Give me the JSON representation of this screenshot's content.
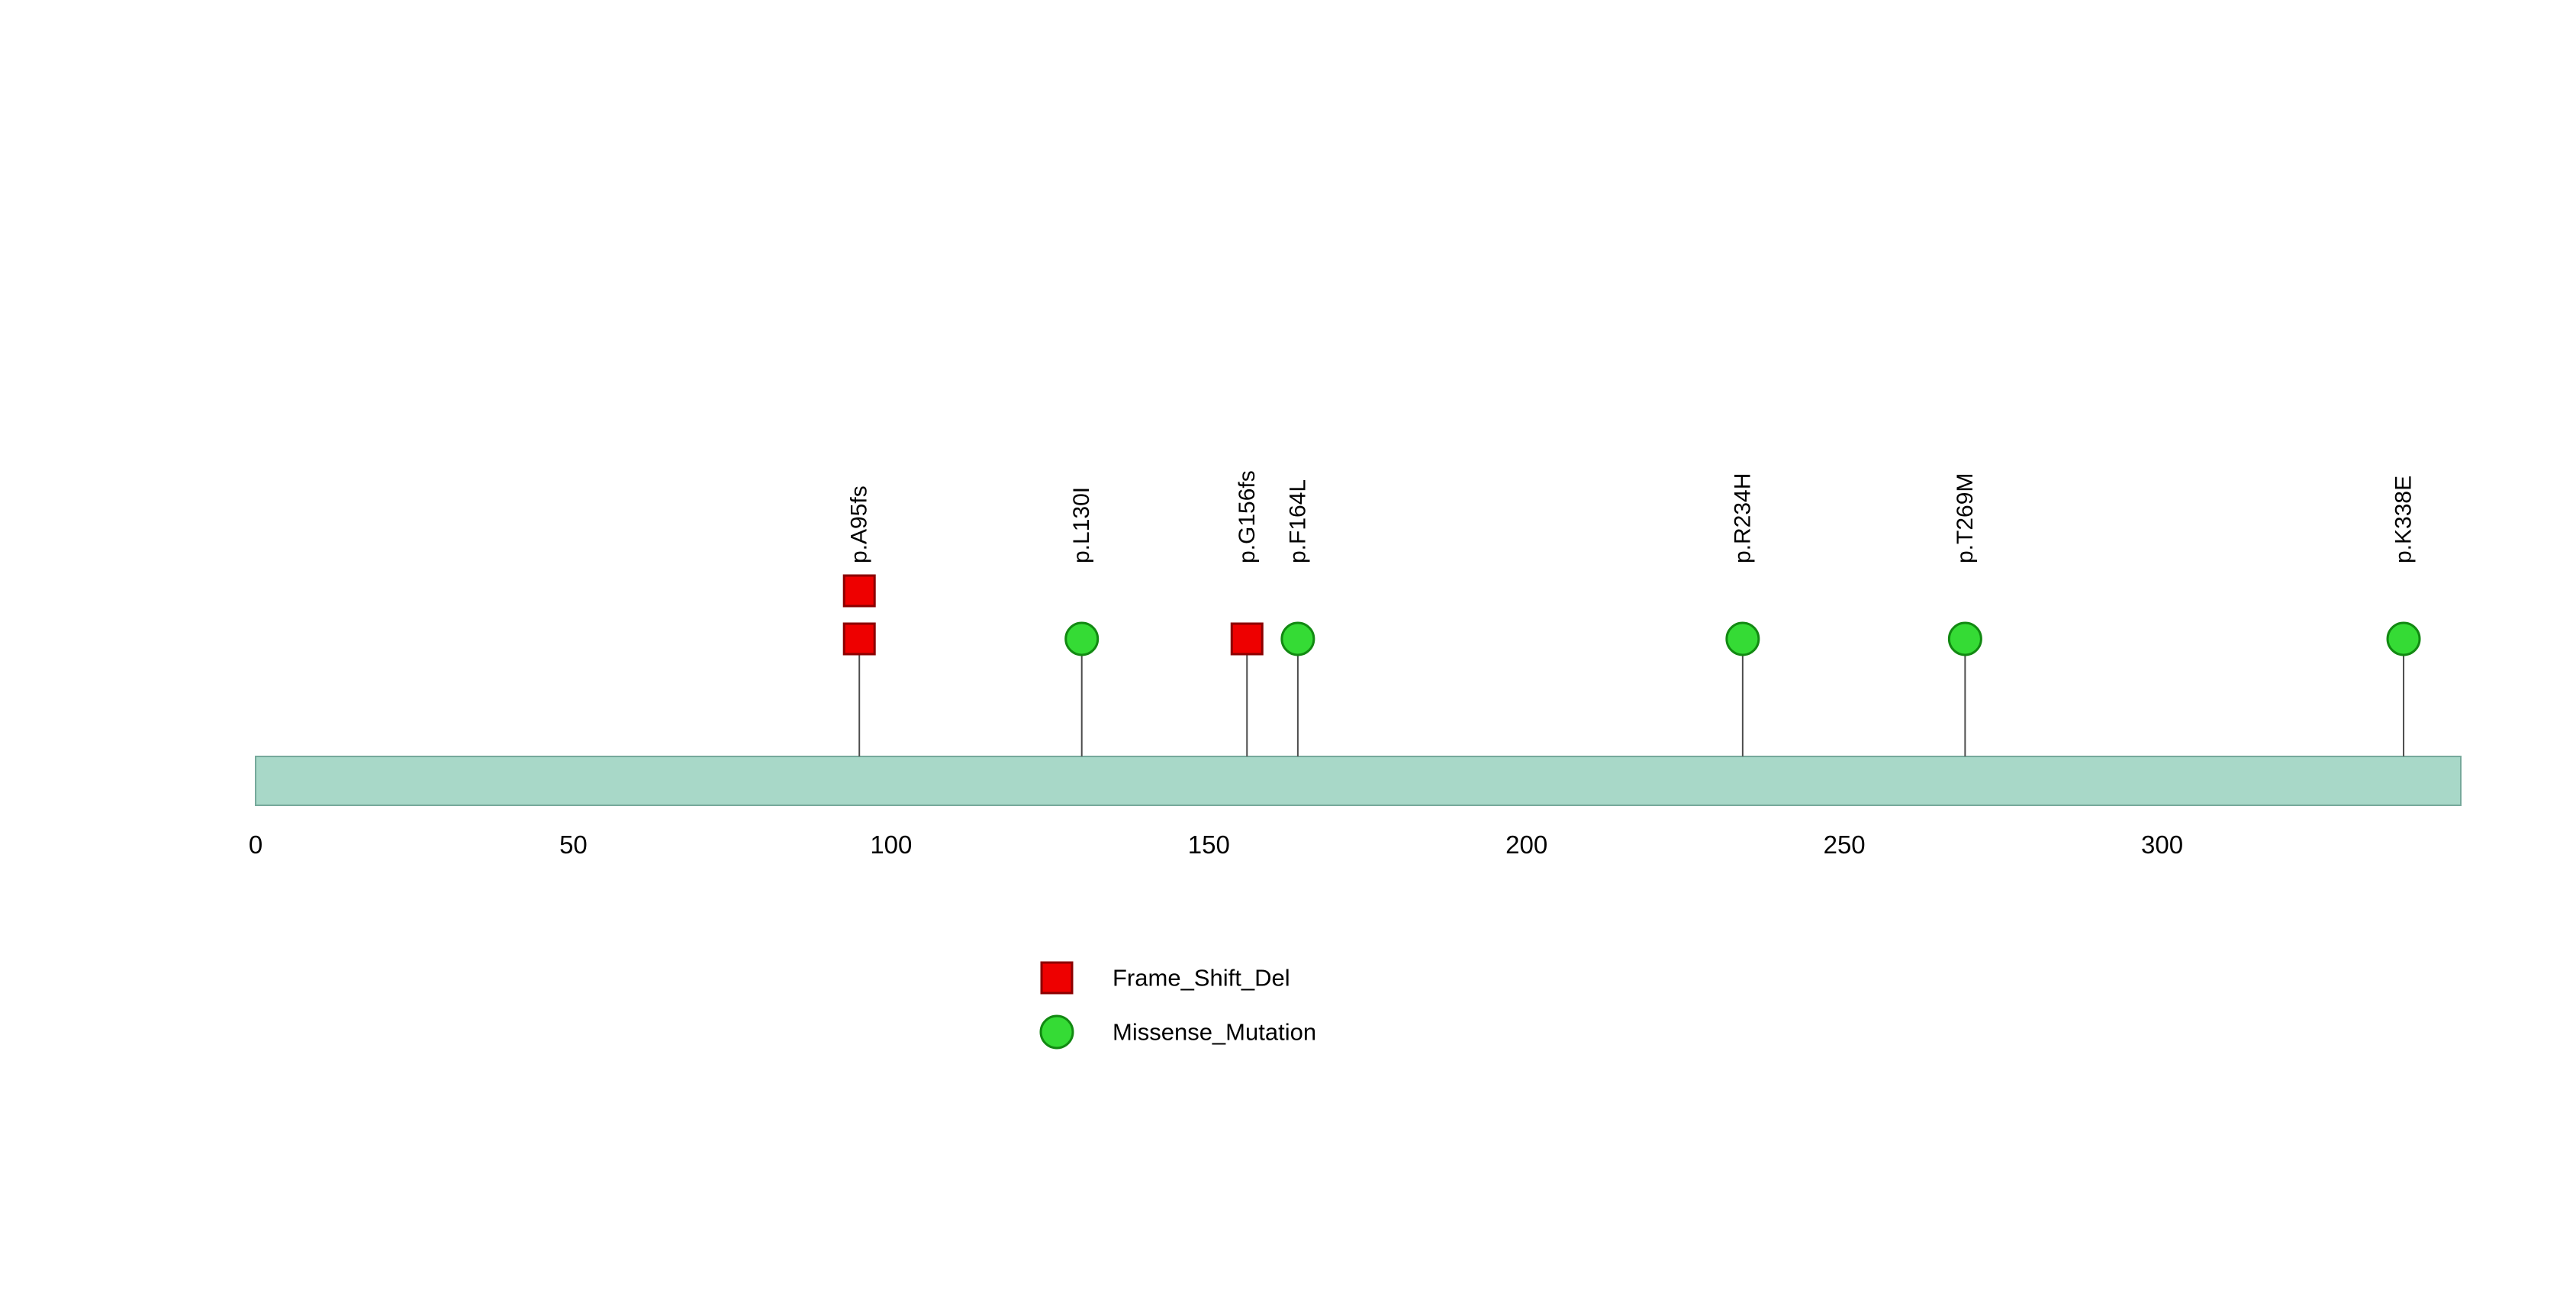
{
  "chart_data": {
    "type": "lollipop",
    "title": "",
    "protein_length_aa": 347,
    "axis_ticks": [
      0,
      50,
      100,
      150,
      200,
      250,
      300
    ],
    "mutations": [
      {
        "label": "p.A95fs",
        "position": 95,
        "type": "Frame_Shift_Del",
        "count": 2
      },
      {
        "label": "p.L130I",
        "position": 130,
        "type": "Missense_Mutation",
        "count": 1
      },
      {
        "label": "p.G156fs",
        "position": 156,
        "type": "Frame_Shift_Del",
        "count": 1
      },
      {
        "label": "p.F164L",
        "position": 164,
        "type": "Missense_Mutation",
        "count": 1
      },
      {
        "label": "p.R234H",
        "position": 234,
        "type": "Missense_Mutation",
        "count": 1
      },
      {
        "label": "p.T269M",
        "position": 269,
        "type": "Missense_Mutation",
        "count": 1
      },
      {
        "label": "p.K338E",
        "position": 338,
        "type": "Missense_Mutation",
        "count": 1
      }
    ],
    "legend": [
      {
        "label": "Frame_Shift_Del",
        "shape": "square",
        "color": "#EE0000",
        "stroke": "#8B0000"
      },
      {
        "label": "Missense_Mutation",
        "shape": "circle",
        "color": "#35DB35",
        "stroke": "#128912"
      }
    ],
    "colors": {
      "background": "#FFFFFF",
      "bar_fill": "#A8D8C8",
      "bar_stroke": "#76A99B",
      "stem": "#4D4D4D",
      "text": "#000000"
    },
    "legend_position": "bottom-center-left",
    "grid": false,
    "xlim": [
      0,
      347
    ]
  }
}
